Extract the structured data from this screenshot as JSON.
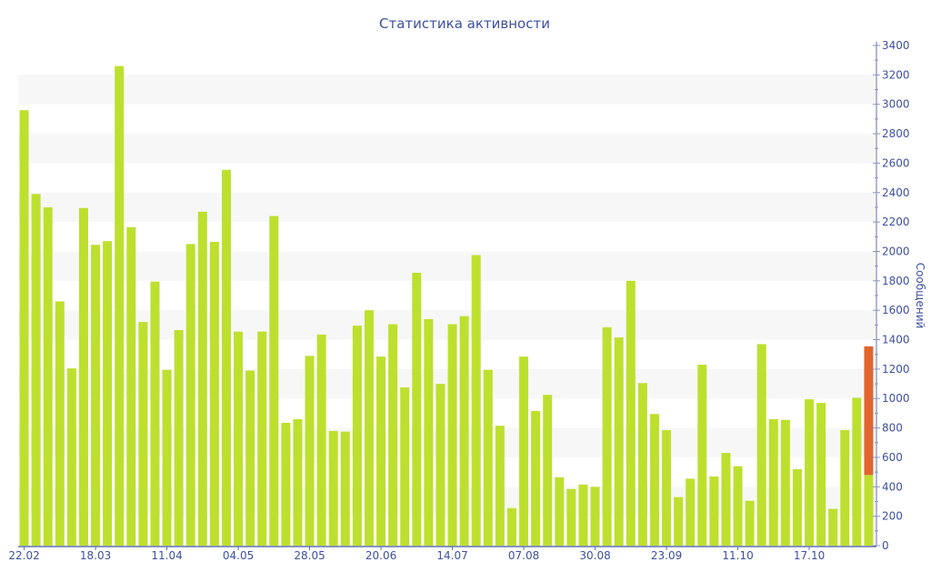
{
  "chart_data": {
    "type": "bar",
    "stacked": true,
    "title": "Статистика активности",
    "ylabel": "Сообщений",
    "xlabel": "",
    "ylim": [
      0,
      3400
    ],
    "y_ticks": [
      0,
      200,
      400,
      600,
      800,
      1000,
      1200,
      1400,
      1600,
      1800,
      2000,
      2200,
      2400,
      2600,
      2800,
      3000,
      3200,
      3400
    ],
    "y_axis_side": "right",
    "grid": "alternating horizontal bands every 200",
    "x_tick_labels": [
      {
        "index": 0,
        "label": "22.02"
      },
      {
        "index": 6,
        "label": "18.03"
      },
      {
        "index": 12,
        "label": "11.04"
      },
      {
        "index": 18,
        "label": "04.05"
      },
      {
        "index": 24,
        "label": "28.05"
      },
      {
        "index": 30,
        "label": "20.06"
      },
      {
        "index": 36,
        "label": "14.07"
      },
      {
        "index": 42,
        "label": "07.08"
      },
      {
        "index": 48,
        "label": "30.08"
      },
      {
        "index": 54,
        "label": "23.09"
      },
      {
        "index": 60,
        "label": "11.10"
      },
      {
        "index": 66,
        "label": "17.10"
      }
    ],
    "series": [
      {
        "color": "#bde02e",
        "values": [
          2960,
          2390,
          2300,
          1660,
          1205,
          2295,
          2045,
          2070,
          3260,
          2165,
          1520,
          1795,
          1195,
          1465,
          2050,
          2270,
          2065,
          2555,
          1455,
          1190,
          1455,
          2240,
          835,
          860,
          1290,
          1435,
          780,
          775,
          1495,
          1600,
          1285,
          1505,
          1075,
          1855,
          1540,
          1100,
          1505,
          1560,
          1975,
          1195,
          815,
          255,
          1285,
          915,
          1025,
          465,
          385,
          415,
          400,
          1485,
          1415,
          1800,
          1105,
          895,
          785,
          330,
          455,
          1230,
          470,
          630,
          540,
          305,
          1370,
          860,
          855,
          520,
          995,
          970,
          250,
          785,
          1005,
          480
        ]
      },
      {
        "color": "#e0652e",
        "values": [
          0,
          0,
          0,
          0,
          0,
          0,
          0,
          0,
          0,
          0,
          0,
          0,
          0,
          0,
          0,
          0,
          0,
          0,
          0,
          0,
          0,
          0,
          0,
          0,
          0,
          0,
          0,
          0,
          0,
          0,
          0,
          0,
          0,
          0,
          0,
          0,
          0,
          0,
          0,
          0,
          0,
          0,
          0,
          0,
          0,
          0,
          0,
          0,
          0,
          0,
          0,
          0,
          0,
          0,
          0,
          0,
          0,
          0,
          0,
          0,
          0,
          0,
          0,
          0,
          0,
          0,
          0,
          0,
          0,
          0,
          0,
          875
        ]
      }
    ]
  }
}
